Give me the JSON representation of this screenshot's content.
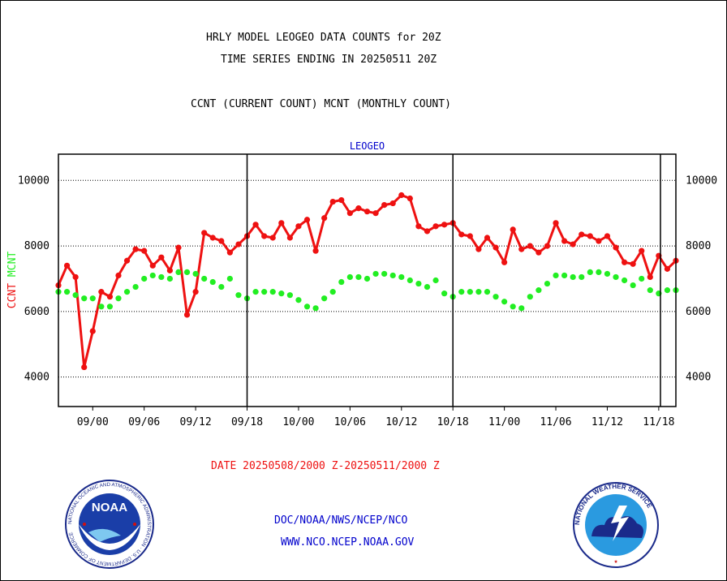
{
  "header": {
    "title_line1": "HRLY MODEL LEOGEO DATA COUNTS for 20Z",
    "title_line2": "TIME SERIES ENDING IN 20250511 20Z",
    "subtitle": "CCNT (CURRENT COUNT) MCNT (MONTHLY COUNT)"
  },
  "footer": {
    "date_range": "DATE 20250508/2000 Z-20250511/2000 Z",
    "link1": "DOC/NOAA/NWS/NCEP/NCO",
    "link2": "WWW.NCO.NCEP.NOAA.GOV"
  },
  "logos": {
    "left": {
      "icon": "noaa-logo",
      "text": "NOAA",
      "ring_text": "NATIONAL OCEANIC AND ATMOSPHERIC ADMINISTRATION · U.S. DEPARTMENT OF COMMERCE"
    },
    "right": {
      "icon": "nws-logo",
      "ring_text": "NATIONAL WEATHER SERVICE"
    }
  },
  "colors": {
    "ccnt": "#ee1111",
    "mcnt": "#22ee22",
    "title_blue": "#0000cc",
    "date_red": "#ee1111"
  },
  "chart_data": {
    "type": "line",
    "title": "LEOGEO",
    "ylabel_parts": [
      {
        "text": "CCNT",
        "color": "#ee1111"
      },
      {
        "text": "MCNT",
        "color": "#22ee22"
      }
    ],
    "ylim": [
      3100,
      10800
    ],
    "yticks": [
      4000,
      6000,
      8000,
      10000
    ],
    "xlim": [
      0,
      72
    ],
    "xticks": [
      {
        "x": 4,
        "label": "09/00"
      },
      {
        "x": 10,
        "label": "09/06"
      },
      {
        "x": 16,
        "label": "09/12"
      },
      {
        "x": 22,
        "label": "09/18"
      },
      {
        "x": 28,
        "label": "10/00"
      },
      {
        "x": 34,
        "label": "10/06"
      },
      {
        "x": 40,
        "label": "10/12"
      },
      {
        "x": 46,
        "label": "10/18"
      },
      {
        "x": 52,
        "label": "11/00"
      },
      {
        "x": 58,
        "label": "11/06"
      },
      {
        "x": 64,
        "label": "11/12"
      },
      {
        "x": 70,
        "label": "11/18"
      }
    ],
    "day_boundaries": [
      22,
      46,
      70.2
    ],
    "grid": "horizontal-dotted",
    "series": [
      {
        "name": "CCNT",
        "color": "#ee1111",
        "values": [
          6800,
          7400,
          7050,
          4300,
          5400,
          6600,
          6450,
          7100,
          7550,
          7900,
          7850,
          7400,
          7650,
          7250,
          7950,
          5900,
          6600,
          8400,
          8250,
          8150,
          7800,
          8050,
          8300,
          8650,
          8300,
          8250,
          8700,
          8250,
          8600,
          8800,
          7850,
          8850,
          9350,
          9400,
          9000,
          9150,
          9050,
          9000,
          9250,
          9300,
          9550,
          9450,
          8600,
          8450,
          8600,
          8650,
          8700,
          8350,
          8300,
          7900,
          8250,
          7950,
          7500,
          8500,
          7900,
          8000,
          7800,
          8000,
          8700,
          8150,
          8050,
          8350,
          8300,
          8150,
          8300,
          7950,
          7500,
          7450,
          7850,
          7050,
          7700,
          7300,
          7550
        ]
      },
      {
        "name": "MCNT",
        "color": "#22ee22",
        "values": [
          6600,
          6600,
          6500,
          6400,
          6400,
          6150,
          6150,
          6400,
          6600,
          6750,
          7000,
          7100,
          7050,
          7000,
          7200,
          7200,
          7150,
          7000,
          6900,
          6750,
          7000,
          6500,
          6400,
          6600,
          6600,
          6600,
          6550,
          6500,
          6350,
          6150,
          6100,
          6400,
          6600,
          6900,
          7050,
          7050,
          7000,
          7150,
          7150,
          7100,
          7050,
          6950,
          6850,
          6750,
          6950,
          6550,
          6450,
          6600,
          6600,
          6600,
          6600,
          6450,
          6300,
          6150,
          6100,
          6450,
          6650,
          6850,
          7100,
          7100,
          7050,
          7050,
          7200,
          7200,
          7150,
          7050,
          6950,
          6800,
          7000,
          6650,
          6550,
          6650,
          6650
        ]
      }
    ]
  }
}
